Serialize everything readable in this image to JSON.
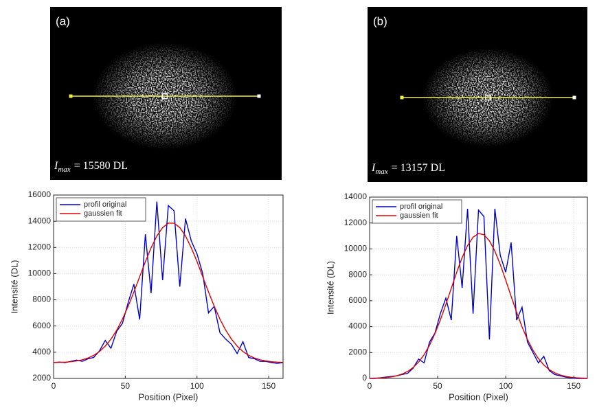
{
  "chart_data": [
    {
      "type": "line",
      "panel_label": "(a)",
      "annotation": {
        "symbol": "I",
        "subscript": "max",
        "text": "= 15580 DL"
      },
      "xlabel": "Position (Pixel)",
      "ylabel": "Intensité (DL)",
      "x": [
        0,
        4,
        8,
        12,
        16,
        20,
        24,
        28,
        32,
        36,
        40,
        44,
        48,
        52,
        56,
        60,
        64,
        68,
        72,
        76,
        80,
        84,
        88,
        92,
        96,
        100,
        104,
        108,
        112,
        116,
        120,
        124,
        128,
        132,
        136,
        140,
        144,
        148,
        152,
        156,
        160
      ],
      "series": [
        {
          "name": "profil original",
          "color": "#0000cc",
          "values": [
            3200,
            3250,
            3200,
            3300,
            3400,
            3300,
            3500,
            3600,
            4100,
            4900,
            4300,
            5600,
            6200,
            7800,
            9200,
            6500,
            13000,
            8500,
            15500,
            9500,
            15200,
            14800,
            9000,
            14200,
            12500,
            11500,
            10000,
            7000,
            7500,
            5500,
            5000,
            4600,
            3900,
            4800,
            3600,
            3500,
            3300,
            3300,
            3200,
            3150,
            3200
          ]
        },
        {
          "name": "gaussien fit",
          "color": "#dd0000",
          "values": [
            3212,
            3223,
            3242,
            3276,
            3332,
            3421,
            3557,
            3763,
            4056,
            4463,
            5001,
            5685,
            6527,
            7512,
            8604,
            9759,
            10915,
            11974,
            12873,
            13517,
            13857,
            13857,
            13517,
            12873,
            11974,
            10915,
            9759,
            8604,
            7512,
            6527,
            5685,
            5001,
            4463,
            4056,
            3763,
            3557,
            3421,
            3332,
            3276,
            3242,
            3223
          ]
        }
      ],
      "xlim": [
        0,
        160
      ],
      "xticks": [
        0,
        50,
        100,
        150
      ],
      "ylim": [
        2000,
        16000
      ],
      "yticks": [
        2000,
        4000,
        6000,
        8000,
        10000,
        12000,
        14000,
        16000
      ],
      "grid": true,
      "legend": "upper left"
    },
    {
      "type": "line",
      "panel_label": "(b)",
      "annotation": {
        "symbol": "I",
        "subscript": "max",
        "text": "= 13157 DL"
      },
      "xlabel": "Position (Pixel)",
      "ylabel": "Intensité (DL)",
      "x": [
        0,
        4,
        8,
        12,
        16,
        20,
        24,
        28,
        32,
        36,
        40,
        44,
        48,
        52,
        56,
        60,
        64,
        68,
        72,
        76,
        80,
        84,
        88,
        92,
        96,
        100,
        104,
        108,
        112,
        116,
        120,
        124,
        128,
        132,
        136,
        140,
        144,
        148,
        152,
        156,
        160
      ],
      "series": [
        {
          "name": "profil original",
          "color": "#0000cc",
          "values": [
            0,
            0,
            50,
            100,
            150,
            200,
            300,
            400,
            800,
            1500,
            1200,
            2800,
            3500,
            5000,
            6200,
            4500,
            11000,
            7000,
            13100,
            5000,
            13000,
            12500,
            3000,
            13100,
            9500,
            8200,
            10500,
            4500,
            5500,
            2800,
            2000,
            1200,
            1700,
            600,
            300,
            200,
            100,
            50,
            0,
            0,
            0
          ]
        },
        {
          "name": "gaussien fit",
          "color": "#dd0000",
          "values": [
            10,
            19,
            36,
            66,
            118,
            203,
            338,
            542,
            842,
            1263,
            1831,
            2561,
            3465,
            4525,
            5713,
            6964,
            8206,
            9338,
            10264,
            10902,
            11188,
            11092,
            10624,
            9831,
            8788,
            7590,
            6334,
            5104,
            3976,
            2994,
            2176,
            1528,
            1036,
            679,
            430,
            263,
            155,
            89,
            49,
            26,
            13
          ]
        }
      ],
      "xlim": [
        0,
        160
      ],
      "xticks": [
        0,
        50,
        100,
        150
      ],
      "ylim": [
        0,
        14000
      ],
      "yticks": [
        0,
        2000,
        4000,
        6000,
        8000,
        10000,
        12000,
        14000
      ],
      "grid": true,
      "legend": "upper left"
    }
  ]
}
